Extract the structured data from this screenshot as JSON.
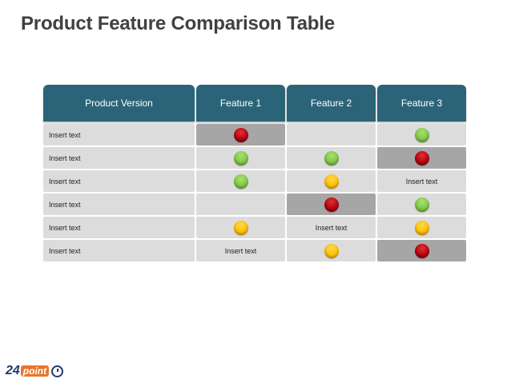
{
  "title": "Product Feature Comparison Table",
  "table": {
    "headers": [
      "Product Version",
      "Feature 1",
      "Feature 2",
      "Feature 3"
    ],
    "rows": [
      {
        "label": "Insert text",
        "cells": [
          {
            "type": "dot",
            "color": "red",
            "shaded": true
          },
          {
            "type": "empty",
            "shaded": false
          },
          {
            "type": "dot",
            "color": "green",
            "shaded": false
          }
        ]
      },
      {
        "label": "Insert text",
        "cells": [
          {
            "type": "dot",
            "color": "green",
            "shaded": false
          },
          {
            "type": "dot",
            "color": "green",
            "shaded": false
          },
          {
            "type": "dot",
            "color": "red",
            "shaded": true
          }
        ]
      },
      {
        "label": "Insert text",
        "cells": [
          {
            "type": "dot",
            "color": "green",
            "shaded": false
          },
          {
            "type": "dot",
            "color": "yellow",
            "shaded": false
          },
          {
            "type": "text",
            "text": "Insert text",
            "shaded": false
          }
        ]
      },
      {
        "label": "Insert text",
        "cells": [
          {
            "type": "empty",
            "shaded": false
          },
          {
            "type": "dot",
            "color": "red",
            "shaded": true
          },
          {
            "type": "dot",
            "color": "green",
            "shaded": false
          }
        ]
      },
      {
        "label": "Insert text",
        "cells": [
          {
            "type": "dot",
            "color": "yellow",
            "shaded": false
          },
          {
            "type": "text",
            "text": "Insert text",
            "shaded": false
          },
          {
            "type": "dot",
            "color": "yellow",
            "shaded": false
          }
        ]
      },
      {
        "label": "Insert text",
        "cells": [
          {
            "type": "text",
            "text": "Insert text",
            "shaded": false
          },
          {
            "type": "dot",
            "color": "yellow",
            "shaded": false
          },
          {
            "type": "dot",
            "color": "red",
            "shaded": true
          }
        ]
      }
    ]
  },
  "logo": {
    "number": "24",
    "word": "point"
  },
  "colors": {
    "header_bg": "#2b6478",
    "cell_bg": "#dcdcdc",
    "cell_shaded_bg": "#a6a6a6",
    "red": "#b00010",
    "green": "#7fc645",
    "yellow": "#ffbf00"
  }
}
